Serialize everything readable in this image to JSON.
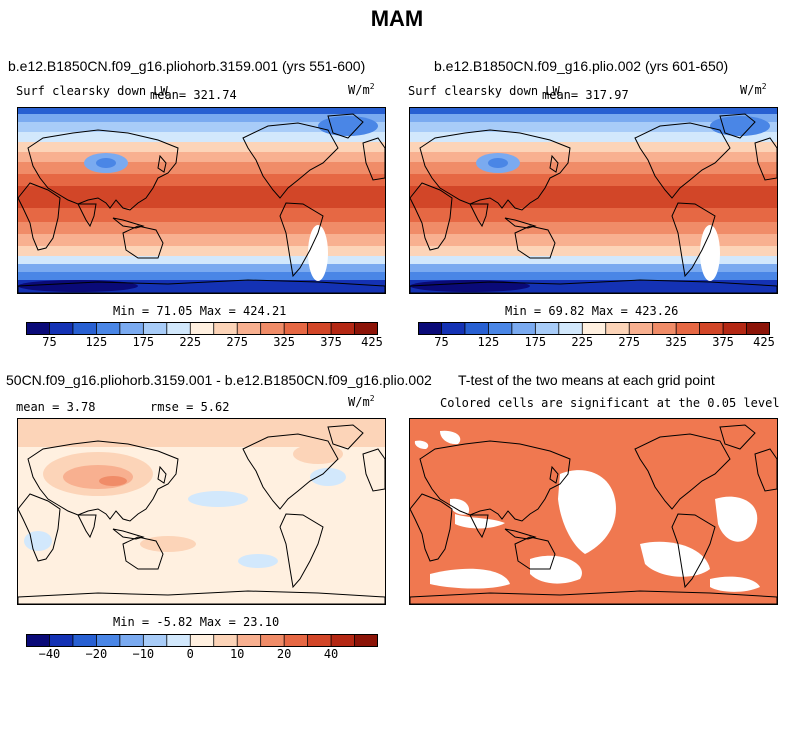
{
  "title": "MAM",
  "panels": [
    {
      "title": "b.e12.B1850CN.f09_g16.pliohorb.3159.001 (yrs 551-600)",
      "variable": "Surf clearsky down LW",
      "mean_label": "mean= 321.74",
      "units": "W/m",
      "units_sup": "2",
      "minmax": "Min =  71.05 Max = 424.21"
    },
    {
      "title": "b.e12.B1850CN.f09_g16.plio.002 (yrs 601-650)",
      "variable": "Surf clearsky down LW",
      "mean_label": "mean= 317.97",
      "units": "W/m",
      "units_sup": "2",
      "minmax": "Min =  69.82 Max = 423.26"
    },
    {
      "title": "50CN.f09_g16.pliohorb.3159.001 - b.e12.B1850CN.f09_g16.plio.002",
      "mean_label": "mean =   3.78",
      "rmse_label": "rmse =   5.62",
      "units": "W/m",
      "units_sup": "2",
      "minmax": "Min =  -5.82 Max =  23.10"
    },
    {
      "title": "T-test of the two means at each grid point",
      "subtitle": "Colored cells are significant at the 0.05 level"
    }
  ],
  "colorbars": {
    "abs": {
      "colors": [
        "#0a0a78",
        "#1432b4",
        "#2860d2",
        "#4a86e6",
        "#7aaaf0",
        "#a8ccf8",
        "#d2e8fc",
        "#fff0e0",
        "#fcd4b8",
        "#f8b090",
        "#f08c68",
        "#e66844",
        "#d24628",
        "#b42814",
        "#8c1408"
      ],
      "tick_labels": [
        "75",
        "125",
        "175",
        "225",
        "275",
        "325",
        "375",
        "425"
      ]
    },
    "diff": {
      "colors": [
        "#0a0a78",
        "#1432b4",
        "#2860d2",
        "#4a86e6",
        "#7aaaf0",
        "#a8ccf8",
        "#d2e8fc",
        "#fff0e0",
        "#fcd4b8",
        "#f8b090",
        "#f08c68",
        "#e66844",
        "#d24628",
        "#b42814",
        "#8c1408"
      ],
      "tick_labels": [
        "−40",
        "−20",
        "−10",
        "0",
        "10",
        "20",
        "40"
      ]
    }
  },
  "chart_data": [
    {
      "type": "heatmap",
      "title": "b.e12.B1850CN.f09_g16.pliohorb.3159.001 (yrs 551-600)",
      "variable": "Surf clearsky down LW",
      "units": "W/m2",
      "mean": 321.74,
      "min": 71.05,
      "max": 424.21,
      "colorbar_ticks": [
        75,
        125,
        175,
        225,
        275,
        325,
        375,
        425
      ]
    },
    {
      "type": "heatmap",
      "title": "b.e12.B1850CN.f09_g16.plio.002 (yrs 601-650)",
      "variable": "Surf clearsky down LW",
      "units": "W/m2",
      "mean": 317.97,
      "min": 69.82,
      "max": 423.26,
      "colorbar_ticks": [
        75,
        125,
        175,
        225,
        275,
        325,
        375,
        425
      ]
    },
    {
      "type": "heatmap",
      "title": "50CN.f09_g16.pliohorb.3159.001 - b.e12.B1850CN.f09_g16.plio.002",
      "units": "W/m2",
      "mean": 3.78,
      "rmse": 5.62,
      "min": -5.82,
      "max": 23.1,
      "colorbar_ticks": [
        -40,
        -20,
        -10,
        0,
        10,
        20,
        40
      ]
    },
    {
      "type": "heatmap",
      "title": "T-test of the two means at each grid point",
      "subtitle": "Colored cells are significant at the 0.05 level"
    }
  ]
}
